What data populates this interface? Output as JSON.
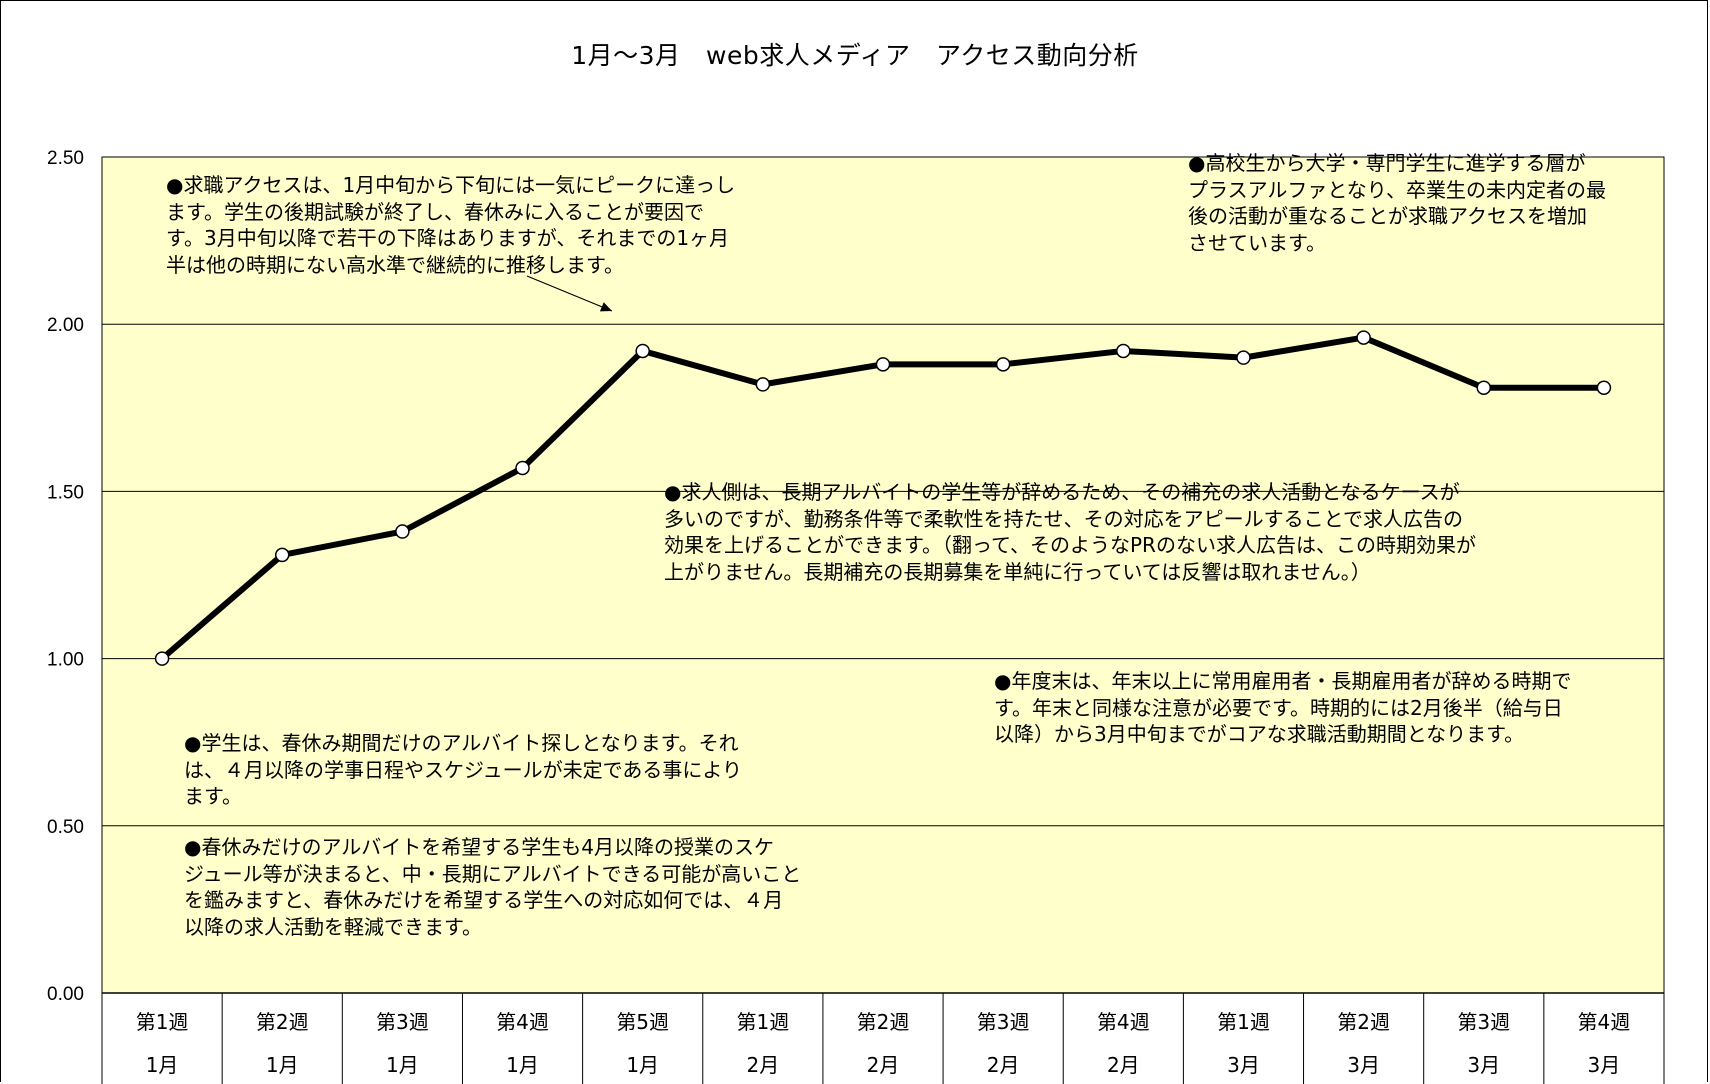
{
  "chart_data": {
    "type": "line",
    "title": "1月～3月　web求人メディア　アクセス動向分析",
    "xlabel": "",
    "ylabel": "",
    "ylim": [
      0,
      2.5
    ],
    "yticks": [
      "0.00",
      "0.50",
      "1.00",
      "1.50",
      "2.00",
      "2.50"
    ],
    "grid": true,
    "legend": "none",
    "plot_background": "#FFFFCC",
    "line_color": "#000000",
    "categories": [
      {
        "week": "第1週",
        "month": "1月"
      },
      {
        "week": "第2週",
        "month": "1月"
      },
      {
        "week": "第3週",
        "month": "1月"
      },
      {
        "week": "第4週",
        "month": "1月"
      },
      {
        "week": "第5週",
        "month": "1月"
      },
      {
        "week": "第1週",
        "month": "2月"
      },
      {
        "week": "第2週",
        "month": "2月"
      },
      {
        "week": "第3週",
        "month": "2月"
      },
      {
        "week": "第4週",
        "month": "2月"
      },
      {
        "week": "第1週",
        "month": "3月"
      },
      {
        "week": "第2週",
        "month": "3月"
      },
      {
        "week": "第3週",
        "month": "3月"
      },
      {
        "week": "第4週",
        "month": "3月"
      }
    ],
    "series": [
      {
        "name": "アクセス",
        "values": [
          1.0,
          1.31,
          1.38,
          1.57,
          1.92,
          1.82,
          1.88,
          1.88,
          1.92,
          1.9,
          1.96,
          1.81,
          1.81
        ]
      }
    ],
    "annotations": [
      {
        "id": "peak",
        "lines": [
          "●求職アクセスは、1月中旬から下旬には一気にピークに達っし",
          "ます。学生の後期試験が終了し、春休みに入ることが要因で",
          "す。3月中旬以降で若干の下降はありますが、それまでの1ヶ月",
          "半は他の時期にない高水準で継続的に推移します。"
        ]
      },
      {
        "id": "highschool",
        "lines": [
          "●高校生から大学・専門学生に進学する層が",
          "プラスアルファとなり、卒業生の未内定者の最",
          "後の活動が重なることが求職アクセスを増加",
          "させています。"
        ]
      },
      {
        "id": "employer",
        "lines": [
          "●求人側は、長期アルバイトの学生等が辞めるため、その補充の求人活動となるケースが",
          "多いのですが、勤務条件等で柔軟性を持たせ、その対応をアピールすることで求人広告の",
          "効果を上げることができます。（翻って、そのようなPRのない求人広告は、この時期効果が",
          "上がりません。長期補充の長期募集を単純に行っていては反響は取れません。）"
        ]
      },
      {
        "id": "yearend",
        "lines": [
          "●年度末は、年末以上に常用雇用者・長期雇用者が辞める時期で",
          "す。年末と同様な注意が必要です。時期的には2月後半（給与日",
          "以降）から3月中旬までがコアな求職活動期間となります。"
        ]
      },
      {
        "id": "student",
        "lines": [
          "●学生は、春休み期間だけのアルバイト探しとなります。それ",
          "は、４月以降の学事日程やスケジュールが未定である事により",
          "ます。"
        ]
      },
      {
        "id": "springonly",
        "lines": [
          "●春休みだけのアルバイトを希望する学生も4月以降の授業のスケ",
          "ジュール等が決まると、中・長期にアルバイトできる可能が高いこと",
          "を鑑みますと、春休みだけを希望する学生への対応如何では、４月",
          "以降の求人活動を軽減できます。"
        ]
      }
    ]
  }
}
